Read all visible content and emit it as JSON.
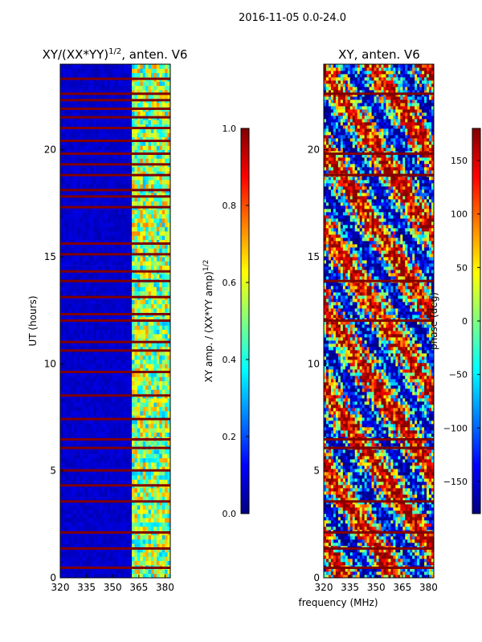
{
  "figure_title": "2016-11-05 0.0-24.0",
  "shared_xlabel": "frequency (MHz)",
  "colors": {
    "jet": [
      "#000080",
      "#0000ff",
      "#0080ff",
      "#00ffff",
      "#80ff80",
      "#ffff00",
      "#ff8000",
      "#ff0000",
      "#800000"
    ],
    "flag_row": "#800000",
    "axis": "#000000"
  },
  "chart_data": [
    {
      "type": "heatmap",
      "title": "XY/(XX*YY)",
      "title_exponent": "1/2",
      "title_suffix": ", anten. V6",
      "ylabel": "UT (hours)",
      "xlabel": "",
      "xlim": [
        320,
        383
      ],
      "ylim": [
        0,
        24
      ],
      "xticks": [
        320,
        335,
        350,
        365,
        380
      ],
      "yticks": [
        0,
        5,
        10,
        15,
        20
      ],
      "colorbar": {
        "label": "XY amp. / (XX*YY amp)",
        "label_exponent": "1/2",
        "range": [
          0.0,
          1.0
        ],
        "ticks": [
          0.0,
          0.2,
          0.4,
          0.6,
          0.8,
          1.0
        ],
        "tick_labels": [
          "0.0",
          "0.2",
          "0.4",
          "0.6",
          "0.8",
          "1.0"
        ]
      },
      "background_value": 0.05,
      "high_band_mhz": [
        360.5,
        383
      ],
      "high_band_value_range": [
        0.3,
        0.75
      ],
      "flagged_hours": [
        0.45,
        1.35,
        2.1,
        3.55,
        4.3,
        5.0,
        6.05,
        6.45,
        7.4,
        8.5,
        9.6,
        10.6,
        11.0,
        12.0,
        12.3,
        13.1,
        13.85,
        14.3,
        15.1,
        15.6,
        17.3,
        17.8,
        18.1,
        18.8,
        19.3,
        19.8,
        20.4,
        21.0,
        21.5,
        21.9,
        22.3,
        22.6,
        23.3
      ]
    },
    {
      "type": "heatmap",
      "title": "XY, anten. V6",
      "ylabel": "",
      "xlabel": "frequency (MHz)",
      "xlim": [
        320,
        383
      ],
      "ylim": [
        0,
        24
      ],
      "xticks": [
        320,
        335,
        350,
        365,
        380
      ],
      "yticks": [
        0,
        5,
        10,
        15,
        20
      ],
      "colorbar": {
        "label": "phase (deg)",
        "range": [
          -180,
          180
        ],
        "ticks": [
          -150,
          -100,
          -50,
          0,
          50,
          100,
          150
        ],
        "tick_labels": [
          "−150",
          "−100",
          "−50",
          "0",
          "50",
          "100",
          "150"
        ]
      },
      "value_range": [
        -180,
        180
      ],
      "flagged_hours": [
        0.45,
        1.35,
        2.1,
        3.55,
        6.05,
        6.45,
        12.0,
        13.85,
        18.8,
        19.8,
        22.6
      ]
    }
  ]
}
